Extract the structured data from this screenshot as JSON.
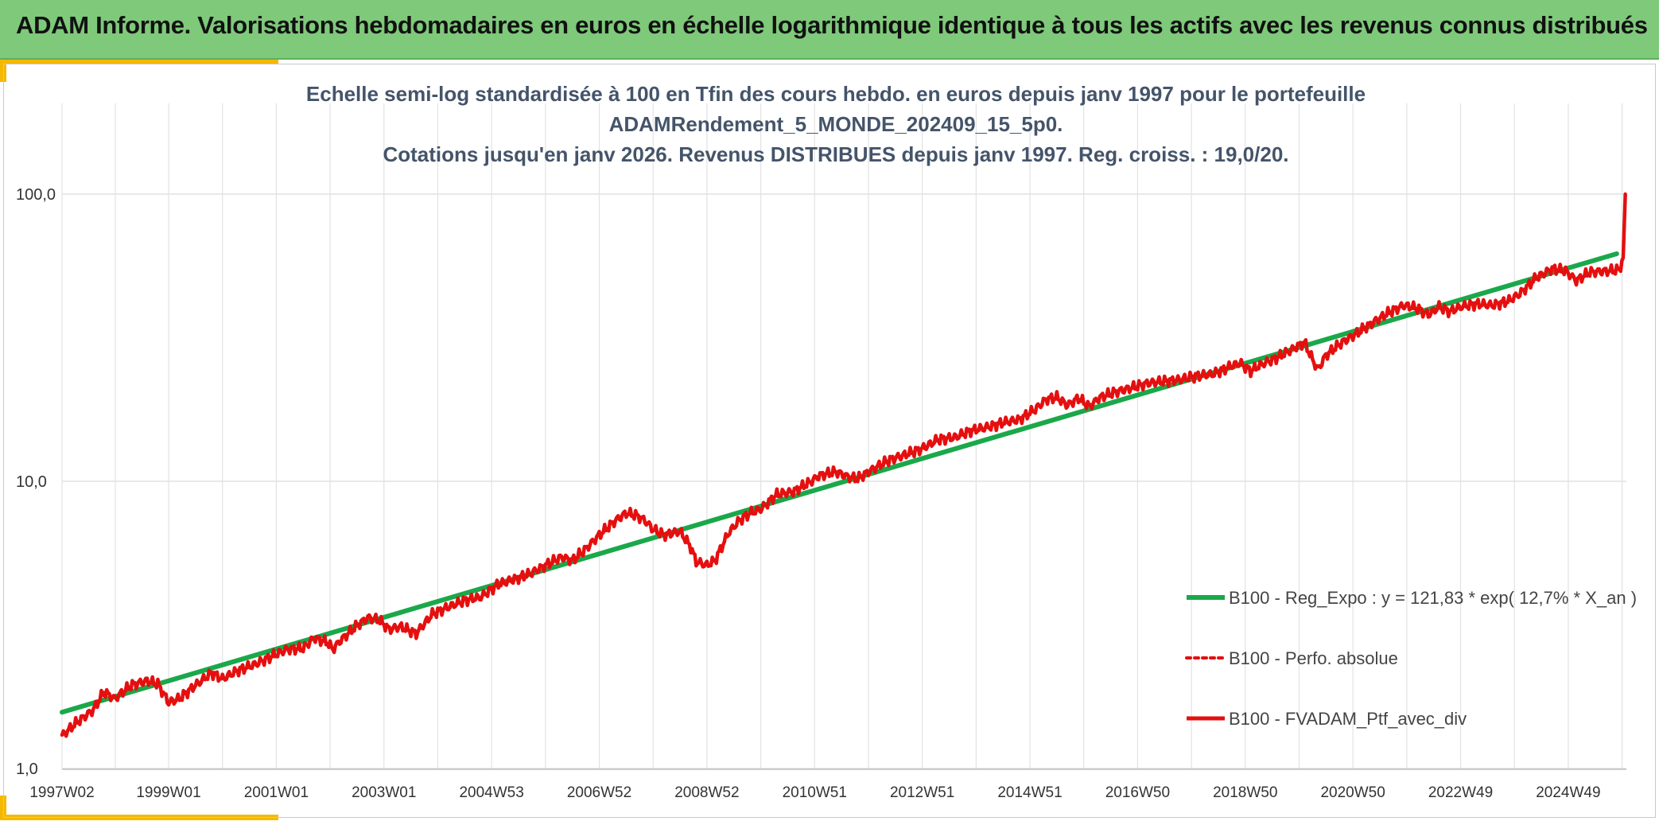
{
  "header": {
    "title": "ADAM Informe. Valorisations hebdomadaires en euros en échelle logarithmique identique à tous les actifs avec les revenus connus distribués"
  },
  "colors": {
    "banner": "#7ec97a",
    "accent": "#f5b800",
    "regression": "#1aa84a",
    "portfolio": "#e50f0f",
    "grid": "#e2e2e2",
    "title_text": "#44546a"
  },
  "chart_data": {
    "type": "line",
    "title_lines": [
      "Echelle semi-log standardisée à 100 en Tfin des cours hebdo. en euros depuis janv 1997 pour le portefeuille",
      "ADAMRendement_5_MONDE_202409_15_5p0.",
      "Cotations jusqu'en janv 2026. Revenus DISTRIBUES depuis janv 1997. Reg. croiss. : 19,0/20."
    ],
    "y_scale": "log",
    "ylim": [
      1,
      200
    ],
    "y_ticks": [
      {
        "value": 1,
        "label": "1,0"
      },
      {
        "value": 10,
        "label": "10,0"
      },
      {
        "value": 100,
        "label": "100,0"
      }
    ],
    "xlim": [
      1997.02,
      2026.08
    ],
    "x_ticks": [
      {
        "label": "1997W02",
        "x": 1997.02
      },
      {
        "label": "1999W01",
        "x": 1999.0
      },
      {
        "label": "2001W01",
        "x": 2001.0
      },
      {
        "label": "2003W01",
        "x": 2003.0
      },
      {
        "label": "2004W53",
        "x": 2005.0
      },
      {
        "label": "2006W52",
        "x": 2007.0
      },
      {
        "label": "2008W52",
        "x": 2009.0
      },
      {
        "label": "2010W51",
        "x": 2011.0
      },
      {
        "label": "2012W51",
        "x": 2013.0
      },
      {
        "label": "2014W51",
        "x": 2015.0
      },
      {
        "label": "2016W50",
        "x": 2017.0
      },
      {
        "label": "2018W50",
        "x": 2019.0
      },
      {
        "label": "2020W50",
        "x": 2021.0
      },
      {
        "label": "2022W49",
        "x": 2023.0
      },
      {
        "label": "2024W49",
        "x": 2025.0
      }
    ],
    "grid": true,
    "legend_position": "right",
    "series": [
      {
        "name": "B100 - Reg_Expo : y = 121,83 * exp( 12,7% *  X_an )",
        "color": "#1aa84a",
        "style": "solid",
        "points": [
          [
            1997.02,
            1.57
          ],
          [
            2025.9,
            62.0
          ]
        ]
      },
      {
        "name": "B100 - Perfo. absolue",
        "color": "#e50f0f",
        "style": "dotted",
        "points": []
      },
      {
        "name": "B100 - FVADAM_Ptf_avec_div",
        "color": "#e50f0f",
        "style": "solid",
        "points": [
          [
            1997.02,
            1.3
          ],
          [
            1997.3,
            1.45
          ],
          [
            1997.6,
            1.6
          ],
          [
            1997.8,
            1.85
          ],
          [
            1998.0,
            1.75
          ],
          [
            1998.3,
            1.95
          ],
          [
            1998.6,
            2.02
          ],
          [
            1998.8,
            1.97
          ],
          [
            1999.0,
            1.7
          ],
          [
            1999.2,
            1.75
          ],
          [
            1999.5,
            1.95
          ],
          [
            1999.8,
            2.15
          ],
          [
            2000.0,
            2.05
          ],
          [
            2000.3,
            2.2
          ],
          [
            2000.6,
            2.3
          ],
          [
            2000.9,
            2.45
          ],
          [
            2001.2,
            2.6
          ],
          [
            2001.5,
            2.62
          ],
          [
            2001.7,
            2.85
          ],
          [
            2001.95,
            2.75
          ],
          [
            2002.05,
            2.6
          ],
          [
            2002.2,
            2.8
          ],
          [
            2002.5,
            3.15
          ],
          [
            2002.7,
            3.35
          ],
          [
            2002.9,
            3.3
          ],
          [
            2003.1,
            3.05
          ],
          [
            2003.3,
            3.12
          ],
          [
            2003.6,
            2.95
          ],
          [
            2003.9,
            3.45
          ],
          [
            2004.2,
            3.65
          ],
          [
            2004.5,
            3.85
          ],
          [
            2004.8,
            3.95
          ],
          [
            2005.1,
            4.35
          ],
          [
            2005.4,
            4.55
          ],
          [
            2005.7,
            4.75
          ],
          [
            2006.0,
            5.1
          ],
          [
            2006.3,
            5.45
          ],
          [
            2006.5,
            5.3
          ],
          [
            2006.7,
            5.7
          ],
          [
            2007.0,
            6.5
          ],
          [
            2007.3,
            7.3
          ],
          [
            2007.5,
            7.75
          ],
          [
            2007.7,
            7.6
          ],
          [
            2007.85,
            7.3
          ],
          [
            2008.0,
            6.8
          ],
          [
            2008.2,
            6.5
          ],
          [
            2008.5,
            6.7
          ],
          [
            2008.7,
            5.9
          ],
          [
            2008.8,
            5.25
          ],
          [
            2009.0,
            5.1
          ],
          [
            2009.15,
            5.3
          ],
          [
            2009.4,
            6.6
          ],
          [
            2009.6,
            7.3
          ],
          [
            2009.8,
            7.75
          ],
          [
            2010.0,
            8.0
          ],
          [
            2010.3,
            9.0
          ],
          [
            2010.6,
            9.2
          ],
          [
            2010.9,
            9.9
          ],
          [
            2011.1,
            10.5
          ],
          [
            2011.4,
            10.8
          ],
          [
            2011.6,
            10.4
          ],
          [
            2011.8,
            10.2
          ],
          [
            2012.0,
            10.8
          ],
          [
            2012.4,
            11.9
          ],
          [
            2012.7,
            12.4
          ],
          [
            2013.0,
            13.0
          ],
          [
            2013.3,
            14.0
          ],
          [
            2013.6,
            14.2
          ],
          [
            2013.9,
            15.0
          ],
          [
            2014.2,
            15.4
          ],
          [
            2014.5,
            16.0
          ],
          [
            2014.8,
            16.4
          ],
          [
            2015.1,
            17.8
          ],
          [
            2015.3,
            19.3
          ],
          [
            2015.5,
            19.6
          ],
          [
            2015.7,
            18.4
          ],
          [
            2015.9,
            19.5
          ],
          [
            2016.1,
            18.2
          ],
          [
            2016.3,
            19.6
          ],
          [
            2016.6,
            20.5
          ],
          [
            2016.9,
            21.2
          ],
          [
            2017.2,
            22.0
          ],
          [
            2017.5,
            22.3
          ],
          [
            2017.8,
            22.6
          ],
          [
            2018.1,
            23.3
          ],
          [
            2018.4,
            23.6
          ],
          [
            2018.7,
            25.0
          ],
          [
            2018.9,
            25.8
          ],
          [
            2019.1,
            24.2
          ],
          [
            2019.3,
            25.5
          ],
          [
            2019.6,
            27.0
          ],
          [
            2019.9,
            29.0
          ],
          [
            2020.1,
            30.5
          ],
          [
            2020.25,
            26.5
          ],
          [
            2020.35,
            24.5
          ],
          [
            2020.5,
            27.5
          ],
          [
            2020.8,
            30.5
          ],
          [
            2021.1,
            33.0
          ],
          [
            2021.4,
            36.0
          ],
          [
            2021.7,
            39.0
          ],
          [
            2021.95,
            41.0
          ],
          [
            2022.2,
            40.0
          ],
          [
            2022.4,
            38.0
          ],
          [
            2022.6,
            40.5
          ],
          [
            2022.8,
            39.0
          ],
          [
            2023.0,
            40.5
          ],
          [
            2023.3,
            41.5
          ],
          [
            2023.6,
            41.0
          ],
          [
            2023.9,
            42.5
          ],
          [
            2024.1,
            45.0
          ],
          [
            2024.4,
            51.0
          ],
          [
            2024.7,
            55.0
          ],
          [
            2024.95,
            54.0
          ],
          [
            2025.15,
            50.0
          ],
          [
            2025.4,
            53.5
          ],
          [
            2025.7,
            54.0
          ],
          [
            2025.95,
            54.5
          ],
          [
            2026.02,
            60.0
          ],
          [
            2026.06,
            100.0
          ]
        ]
      }
    ]
  }
}
